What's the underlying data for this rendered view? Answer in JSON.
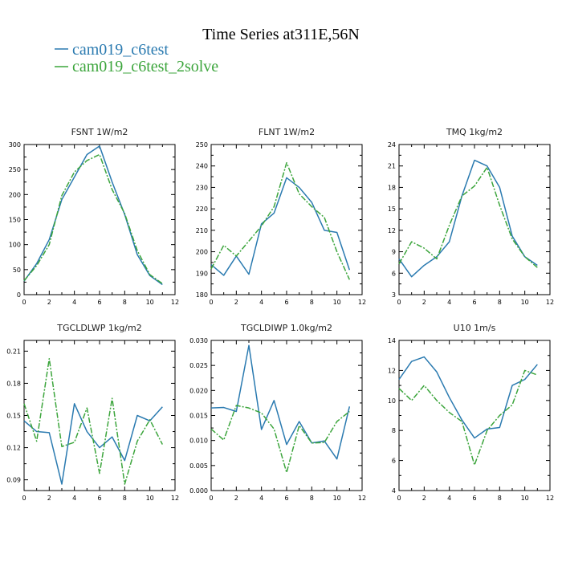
{
  "figure": {
    "title": "Time Series at311E,56N",
    "legend": [
      {
        "name": "cam019_c6test",
        "color": "#2a7ab0"
      },
      {
        "name": "cam019_c6test_2solve",
        "color": "#3ca53c"
      }
    ]
  },
  "chart_data": [
    {
      "type": "line",
      "title": "FSNT   1W/m2",
      "x": [
        0,
        1,
        2,
        3,
        4,
        5,
        6,
        7,
        8,
        9,
        10,
        11
      ],
      "xlim": [
        0,
        12
      ],
      "ylim": [
        0,
        300
      ],
      "xticks": [
        0,
        2,
        4,
        6,
        8,
        10,
        12
      ],
      "yticks": [
        0,
        50,
        100,
        150,
        200,
        250,
        300
      ],
      "yticklabels": [
        "0",
        "50",
        "100",
        "150",
        "200",
        "250",
        "300"
      ],
      "series": [
        {
          "name": "cam019_c6test",
          "values": [
            27,
            62,
            110,
            190,
            235,
            280,
            297,
            225,
            160,
            80,
            38,
            20
          ]
        },
        {
          "name": "cam019_c6test_2solve",
          "values": [
            28,
            58,
            100,
            198,
            245,
            268,
            280,
            210,
            162,
            88,
            40,
            22
          ]
        }
      ]
    },
    {
      "type": "line",
      "title": "FLNT   1W/m2",
      "x": [
        0,
        1,
        2,
        3,
        4,
        5,
        6,
        7,
        8,
        9,
        10,
        11
      ],
      "xlim": [
        0,
        12
      ],
      "ylim": [
        180,
        250
      ],
      "xticks": [
        0,
        2,
        4,
        6,
        8,
        10,
        12
      ],
      "yticks": [
        180,
        190,
        200,
        210,
        220,
        230,
        240,
        250
      ],
      "yticklabels": [
        "180",
        "190",
        "200",
        "210",
        "220",
        "230",
        "240",
        "250"
      ],
      "series": [
        {
          "name": "cam019_c6test",
          "values": [
            194,
            189,
            198,
            189.5,
            213,
            218,
            234.5,
            230,
            223,
            210,
            209,
            191.5
          ]
        },
        {
          "name": "cam019_c6test_2solve",
          "values": [
            192,
            203,
            198,
            205,
            212,
            221,
            241.5,
            227,
            221,
            216,
            200,
            187
          ]
        }
      ]
    },
    {
      "type": "line",
      "title": "TMQ   1kg/m2",
      "x": [
        0,
        1,
        2,
        3,
        4,
        5,
        6,
        7,
        8,
        9,
        10,
        11
      ],
      "xlim": [
        0,
        12
      ],
      "ylim": [
        3,
        24
      ],
      "xticks": [
        0,
        2,
        4,
        6,
        8,
        10,
        12
      ],
      "yticks": [
        3,
        6,
        9,
        12,
        15,
        18,
        21,
        24
      ],
      "yticklabels": [
        "3",
        "6",
        "9",
        "12",
        "15",
        "18",
        "21",
        "24"
      ],
      "series": [
        {
          "name": "cam019_c6test",
          "values": [
            8,
            5.5,
            7.1,
            8.3,
            10.4,
            16.8,
            21.8,
            21,
            18,
            11.2,
            8.3,
            7.1
          ]
        },
        {
          "name": "cam019_c6test_2solve",
          "values": [
            7.3,
            10.4,
            9.5,
            8,
            12.7,
            16.8,
            18.2,
            20.8,
            15.5,
            10.8,
            8.3,
            6.8
          ]
        }
      ]
    },
    {
      "type": "line",
      "title": "TGCLDLWP   1kg/m2",
      "x": [
        0,
        1,
        2,
        3,
        4,
        5,
        6,
        7,
        8,
        9,
        10,
        11
      ],
      "xlim": [
        0,
        12
      ],
      "ylim": [
        0.08,
        0.22
      ],
      "xticks": [
        0,
        2,
        4,
        6,
        8,
        10,
        12
      ],
      "yticks": [
        0.09,
        0.12,
        0.15,
        0.18,
        0.21
      ],
      "yticklabels": [
        "0.09",
        "0.12",
        "0.15",
        "0.18",
        "0.21"
      ],
      "series": [
        {
          "name": "cam019_c6test",
          "values": [
            0.145,
            0.135,
            0.134,
            0.086,
            0.161,
            0.135,
            0.12,
            0.13,
            0.108,
            0.15,
            0.145,
            0.158
          ]
        },
        {
          "name": "cam019_c6test_2solve",
          "values": [
            0.161,
            0.126,
            0.203,
            0.121,
            0.125,
            0.157,
            0.096,
            0.166,
            0.086,
            0.126,
            0.146,
            0.123
          ]
        }
      ]
    },
    {
      "type": "line",
      "title": "TGCLDIWP   1.0kg/m2",
      "x": [
        0,
        1,
        2,
        3,
        4,
        5,
        6,
        7,
        8,
        9,
        10,
        11
      ],
      "xlim": [
        0,
        12
      ],
      "ylim": [
        0,
        0.03
      ],
      "xticks": [
        0,
        2,
        4,
        6,
        8,
        10,
        12
      ],
      "yticks": [
        0,
        0.005,
        0.01,
        0.015,
        0.02,
        0.025,
        0.03
      ],
      "yticklabels": [
        "0.000",
        "0.005",
        "0.010",
        "0.015",
        "0.020",
        "0.025",
        "0.030"
      ],
      "series": [
        {
          "name": "cam019_c6test",
          "values": [
            0.0165,
            0.0166,
            0.0158,
            0.029,
            0.0122,
            0.018,
            0.0092,
            0.0138,
            0.0095,
            0.0099,
            0.0063,
            0.0168
          ]
        },
        {
          "name": "cam019_c6test_2solve",
          "values": [
            0.0123,
            0.0101,
            0.017,
            0.0165,
            0.0155,
            0.0123,
            0.0036,
            0.013,
            0.0095,
            0.0096,
            0.0138,
            0.0158
          ]
        }
      ]
    },
    {
      "type": "line",
      "title": "U10   1m/s",
      "x": [
        0,
        1,
        2,
        3,
        4,
        5,
        6,
        7,
        8,
        9,
        10,
        11
      ],
      "xlim": [
        0,
        12
      ],
      "ylim": [
        4,
        14
      ],
      "xticks": [
        0,
        2,
        4,
        6,
        8,
        10,
        12
      ],
      "yticks": [
        4,
        6,
        8,
        10,
        12,
        14
      ],
      "yticklabels": [
        "4",
        "6",
        "8",
        "10",
        "12",
        "14"
      ],
      "series": [
        {
          "name": "cam019_c6test",
          "values": [
            11.4,
            12.6,
            12.9,
            11.9,
            10.2,
            8.7,
            7.5,
            8.1,
            8.2,
            11,
            11.4,
            12.4
          ]
        },
        {
          "name": "cam019_c6test_2solve",
          "values": [
            10.8,
            10,
            11,
            10,
            9.2,
            8.6,
            5.7,
            8,
            9,
            9.7,
            12,
            11.7
          ]
        }
      ]
    }
  ]
}
